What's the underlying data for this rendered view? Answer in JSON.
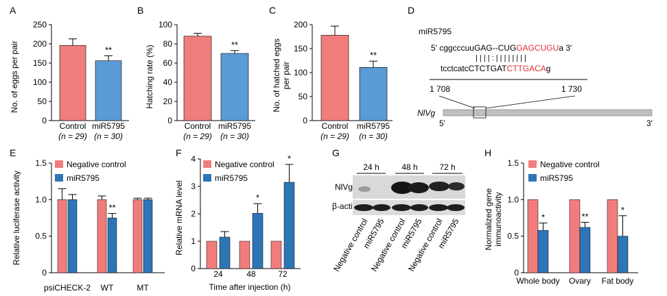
{
  "colors": {
    "control": "#f07d7c",
    "treatment": "#5b9bd5",
    "treatment_dark": "#2e75b6",
    "gene_bar": "#bfbfbf",
    "red_text": "#e03030"
  },
  "panels": {
    "A": {
      "letter": "A",
      "ylabel": "No. of eggs per pair",
      "ticks": [
        "0",
        "50",
        "100",
        "150",
        "200",
        "250"
      ],
      "categories": [
        "Control",
        "miR5795"
      ],
      "n_labels": [
        "(n = 29)",
        "(n = 30)"
      ]
    },
    "B": {
      "letter": "B",
      "ylabel": "Hatching rate (%)",
      "ticks": [
        "0",
        "20",
        "40",
        "60",
        "80",
        "100"
      ],
      "categories": [
        "Control",
        "miR5795"
      ],
      "n_labels": [
        "(n = 29)",
        "(n = 30)"
      ]
    },
    "C": {
      "letter": "C",
      "ylabel_lines": [
        "No. of hatched eggs",
        "per pair"
      ],
      "ticks": [
        "0",
        "50",
        "100",
        "150",
        "200"
      ],
      "categories": [
        "Control",
        "miR5795"
      ],
      "n_labels": [
        "(n = 29)",
        "(n = 30)"
      ]
    },
    "D": {
      "letter": "D",
      "mir_name": "miR5795",
      "top_prefix": "5′ cggcccuuGAG--CUG",
      "top_red": "GAGCUGU",
      "top_suffix": "a 3′",
      "pairing": "| | |   | :  |  |  | | | | | |",
      "bottom_prefix": "tcctcatcCTCTGAT",
      "bottom_red": "CTTGACA",
      "bottom_suffix": "g",
      "pos_start": "1 708",
      "pos_end": "1 730",
      "gene_label": "NlVg",
      "five_prime": "5′",
      "three_prime": "3′"
    },
    "E": {
      "letter": "E",
      "ylabel": "Relative luciferase activity",
      "ticks": [
        "0",
        "0.5",
        "1.0",
        "1.5"
      ],
      "legend": [
        "Negative control",
        "miR5795"
      ],
      "categories": [
        "psiCHECK-2",
        "WT",
        "MT"
      ]
    },
    "F": {
      "letter": "F",
      "ylabel": "Relative mRNA level",
      "ticks": [
        "0",
        "1",
        "2",
        "3",
        "4"
      ],
      "legend": [
        "Negative control",
        "miR5795"
      ],
      "categories": [
        "24",
        "48",
        "72"
      ],
      "xlabel": "Time after injection (h)"
    },
    "G": {
      "letter": "G",
      "times": [
        "24 h",
        "48 h",
        "72 h"
      ],
      "rows": [
        "NlVg",
        "β-actin"
      ],
      "lanes": [
        "Negative control",
        "miR5795",
        "Negative control",
        "miR5795",
        "Negative control",
        "miR5795"
      ]
    },
    "H": {
      "letter": "H",
      "ylabel_lines": [
        "Normalized gene",
        "immunoactivity"
      ],
      "ticks": [
        "0",
        "0.5",
        "1.0",
        "1.5"
      ],
      "legend": [
        "Negative control",
        "miR5795"
      ],
      "categories": [
        "Whole body",
        "Ovary",
        "Fat body"
      ]
    }
  },
  "chart_data": [
    {
      "panel": "A",
      "type": "bar",
      "categories": [
        "Control",
        "miR5795"
      ],
      "values": [
        196,
        156
      ],
      "errors": [
        17,
        13
      ],
      "ylabel": "No. of eggs per pair",
      "ylim": [
        0,
        250
      ],
      "significance": [
        "",
        "**"
      ]
    },
    {
      "panel": "B",
      "type": "bar",
      "categories": [
        "Control",
        "miR5795"
      ],
      "values": [
        88,
        70
      ],
      "errors": [
        3,
        3
      ],
      "ylabel": "Hatching rate (%)",
      "ylim": [
        0,
        100
      ],
      "significance": [
        "",
        "**"
      ]
    },
    {
      "panel": "C",
      "type": "bar",
      "categories": [
        "Control",
        "miR5795"
      ],
      "values": [
        178,
        111
      ],
      "errors": [
        19,
        13
      ],
      "ylabel": "No. of hatched eggs per pair",
      "ylim": [
        0,
        200
      ],
      "significance": [
        "",
        "**"
      ]
    },
    {
      "panel": "E",
      "type": "bar",
      "categories": [
        "psiCHECK-2",
        "WT",
        "MT"
      ],
      "ylabel": "Relative luciferase activity",
      "ylim": [
        0,
        1.5
      ],
      "series": [
        {
          "name": "Negative control",
          "values": [
            1.0,
            1.0,
            1.0
          ],
          "errors": [
            0.15,
            0.05,
            0.02
          ]
        },
        {
          "name": "miR5795",
          "values": [
            1.0,
            0.75,
            1.0
          ],
          "errors": [
            0.07,
            0.06,
            0.02
          ]
        }
      ],
      "significance": [
        "",
        "**",
        ""
      ]
    },
    {
      "panel": "F",
      "type": "bar",
      "categories": [
        "24",
        "48",
        "72"
      ],
      "xlabel": "Time after injection (h)",
      "ylabel": "Relative mRNA level",
      "ylim": [
        0,
        4
      ],
      "series": [
        {
          "name": "Negative control",
          "values": [
            1.0,
            1.0,
            1.0
          ],
          "errors": [
            0,
            0,
            0
          ]
        },
        {
          "name": "miR5795",
          "values": [
            1.15,
            2.02,
            3.15
          ],
          "errors": [
            0.2,
            0.35,
            0.65
          ]
        }
      ],
      "significance": [
        "",
        "*",
        "*"
      ]
    },
    {
      "panel": "H",
      "type": "bar",
      "categories": [
        "Whole body",
        "Ovary",
        "Fat body"
      ],
      "ylabel": "Normalized gene immunoactivity",
      "ylim": [
        0,
        1.5
      ],
      "series": [
        {
          "name": "Negative control",
          "values": [
            1.0,
            1.0,
            1.0
          ],
          "errors": [
            0,
            0,
            0
          ]
        },
        {
          "name": "miR5795",
          "values": [
            0.58,
            0.62,
            0.5
          ],
          "errors": [
            0.1,
            0.07,
            0.28
          ]
        }
      ],
      "significance": [
        "*",
        "**",
        "*"
      ]
    }
  ]
}
